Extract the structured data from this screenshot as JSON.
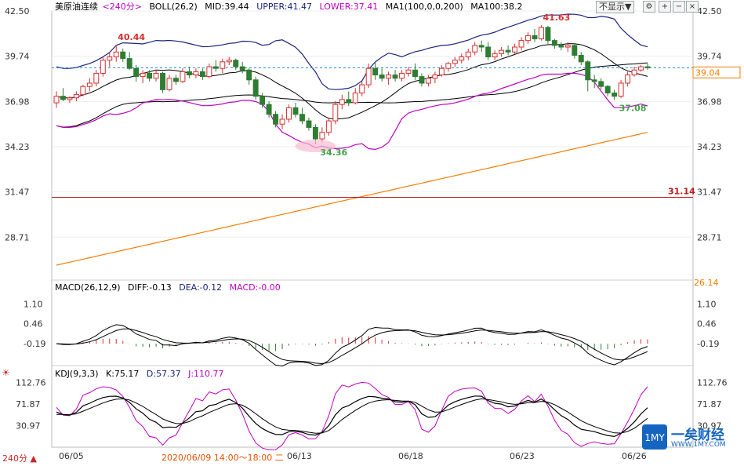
{
  "header": {
    "symbol": "美原油连续",
    "period": "<240分>",
    "boll": "BOLL(26,2)",
    "mid": "MID:39.44",
    "upper": "UPPER:41.47",
    "lower": "LOWER:37.41",
    "ma1": "MA1(100,0,0,200)",
    "ma100": "MA100:38.2",
    "hide_button": "不显示▼"
  },
  "macd_header": {
    "label": "MACD(26,12,9)",
    "diff": "DIFF:-0.13",
    "dea": "DEA:-0.12",
    "macd": "MACD:-0.00"
  },
  "kdj_header": {
    "label": "KDJ(9,3,3)",
    "k": "K:75.17",
    "d": "D:57.37",
    "j": "J:110.77"
  },
  "period_badge": "240分 ▲",
  "cursor_label": "2020/06/09 14:00～18:00 二",
  "logo_text": {
    "cn": "一矣财经",
    "url": "WWW.1MY.COM"
  },
  "chart_data": [
    {
      "type": "candlestick",
      "y_ticks": [
        "42.50",
        "39.74",
        "36.98",
        "34.23",
        "31.47",
        "28.71"
      ],
      "ylim": [
        26.14,
        42.5
      ],
      "axis_bottom_label": "26.14",
      "price_label": "39.04",
      "x_labels": [
        "06/05",
        "06/13",
        "06/18",
        "06/23",
        "06/26"
      ],
      "annotations": [
        {
          "text": "40.44",
          "kind": "high"
        },
        {
          "text": "41.63",
          "kind": "high"
        },
        {
          "text": "34.36",
          "kind": "low"
        },
        {
          "text": "37.08",
          "kind": "low"
        }
      ],
      "reference_line": {
        "value": 31.14,
        "label": "31.14",
        "color": "#b71c1c"
      },
      "colors": {
        "up": "#d32f2f",
        "down": "#2e7d32",
        "upper": "#1a237e",
        "mid": "#000000",
        "lower": "#c000c0",
        "ma100": "#f57c00"
      },
      "candles": [
        [
          36.9,
          37.6,
          36.6,
          37.3
        ],
        [
          37.3,
          37.8,
          37.0,
          37.1
        ],
        [
          37.1,
          37.3,
          36.9,
          37.2
        ],
        [
          37.2,
          37.6,
          37.0,
          37.4
        ],
        [
          37.4,
          38.0,
          37.3,
          37.9
        ],
        [
          37.9,
          38.4,
          37.6,
          38.1
        ],
        [
          38.1,
          38.9,
          37.9,
          38.7
        ],
        [
          38.7,
          39.7,
          38.5,
          39.5
        ],
        [
          39.5,
          40.0,
          39.1,
          39.7
        ],
        [
          39.7,
          40.44,
          39.4,
          40.0
        ],
        [
          40.0,
          40.2,
          39.4,
          39.6
        ],
        [
          39.6,
          40.0,
          38.9,
          39.0
        ],
        [
          39.0,
          39.2,
          38.2,
          38.5
        ],
        [
          38.5,
          38.9,
          38.1,
          38.7
        ],
        [
          38.7,
          38.9,
          38.2,
          38.4
        ],
        [
          38.4,
          38.9,
          38.2,
          38.7
        ],
        [
          38.7,
          38.8,
          37.5,
          37.7
        ],
        [
          37.7,
          38.6,
          37.6,
          38.4
        ],
        [
          38.4,
          38.6,
          38.0,
          38.2
        ],
        [
          38.2,
          39.0,
          38.1,
          38.8
        ],
        [
          38.8,
          39.1,
          38.4,
          38.6
        ],
        [
          38.6,
          39.0,
          38.4,
          38.8
        ],
        [
          38.8,
          39.0,
          38.3,
          38.5
        ],
        [
          38.5,
          39.3,
          38.4,
          39.1
        ],
        [
          39.1,
          39.5,
          38.8,
          39.0
        ],
        [
          39.0,
          39.6,
          38.7,
          39.4
        ],
        [
          39.4,
          39.7,
          39.2,
          39.5
        ],
        [
          39.5,
          39.6,
          38.9,
          39.1
        ],
        [
          39.1,
          39.4,
          38.7,
          38.9
        ],
        [
          38.9,
          39.0,
          38.0,
          38.3
        ],
        [
          38.3,
          38.5,
          37.1,
          37.3
        ],
        [
          37.3,
          37.5,
          36.6,
          36.8
        ],
        [
          36.8,
          37.0,
          36.0,
          36.2
        ],
        [
          36.2,
          36.4,
          35.4,
          35.6
        ],
        [
          35.6,
          36.2,
          35.3,
          35.9
        ],
        [
          35.9,
          36.8,
          35.7,
          36.6
        ],
        [
          36.6,
          36.9,
          36.0,
          36.2
        ],
        [
          36.2,
          36.6,
          35.6,
          35.8
        ],
        [
          35.8,
          36.0,
          35.2,
          35.4
        ],
        [
          35.4,
          35.6,
          34.36,
          34.7
        ],
        [
          34.7,
          35.4,
          34.5,
          35.1
        ],
        [
          35.1,
          36.0,
          34.9,
          35.8
        ],
        [
          35.8,
          37.0,
          35.6,
          36.8
        ],
        [
          36.8,
          37.4,
          36.5,
          37.1
        ],
        [
          37.1,
          37.6,
          36.7,
          36.9
        ],
        [
          36.9,
          37.8,
          36.8,
          37.5
        ],
        [
          37.5,
          38.2,
          37.3,
          38.0
        ],
        [
          38.0,
          39.3,
          37.8,
          39.0
        ],
        [
          39.0,
          39.4,
          38.3,
          38.6
        ],
        [
          38.6,
          39.0,
          38.2,
          38.4
        ],
        [
          38.4,
          38.8,
          38.0,
          38.6
        ],
        [
          38.6,
          38.9,
          38.2,
          38.4
        ],
        [
          38.4,
          38.9,
          38.2,
          38.7
        ],
        [
          38.7,
          39.1,
          38.5,
          38.9
        ],
        [
          38.9,
          39.3,
          38.3,
          38.5
        ],
        [
          38.5,
          38.7,
          37.9,
          38.1
        ],
        [
          38.1,
          38.6,
          37.9,
          38.4
        ],
        [
          38.4,
          38.8,
          38.1,
          38.6
        ],
        [
          38.6,
          39.2,
          38.5,
          39.0
        ],
        [
          39.0,
          39.4,
          38.8,
          39.3
        ],
        [
          39.3,
          39.7,
          39.1,
          39.5
        ],
        [
          39.5,
          39.9,
          39.3,
          39.7
        ],
        [
          39.7,
          40.2,
          39.5,
          40.0
        ],
        [
          40.0,
          40.6,
          39.8,
          40.4
        ],
        [
          40.4,
          40.7,
          40.0,
          40.3
        ],
        [
          40.3,
          40.6,
          39.5,
          39.7
        ],
        [
          39.7,
          40.1,
          39.5,
          39.9
        ],
        [
          39.9,
          40.3,
          39.7,
          40.1
        ],
        [
          40.1,
          40.4,
          39.8,
          40.0
        ],
        [
          40.0,
          40.5,
          39.9,
          40.3
        ],
        [
          40.3,
          40.9,
          40.1,
          40.7
        ],
        [
          40.7,
          41.2,
          40.5,
          41.0
        ],
        [
          41.0,
          41.4,
          40.6,
          40.8
        ],
        [
          40.8,
          41.63,
          40.7,
          41.5
        ],
        [
          41.5,
          41.6,
          40.5,
          40.7
        ],
        [
          40.7,
          40.8,
          40.2,
          40.4
        ],
        [
          40.4,
          40.6,
          40.1,
          40.3
        ],
        [
          40.3,
          40.6,
          40.0,
          40.4
        ],
        [
          40.4,
          40.5,
          39.6,
          39.8
        ],
        [
          39.8,
          40.0,
          39.2,
          39.4
        ],
        [
          39.4,
          39.5,
          37.6,
          38.3
        ],
        [
          38.3,
          38.6,
          37.8,
          38.2
        ],
        [
          38.2,
          38.4,
          37.7,
          37.9
        ],
        [
          37.9,
          38.0,
          37.3,
          37.5
        ],
        [
          37.5,
          37.7,
          37.08,
          37.3
        ],
        [
          37.3,
          38.3,
          37.2,
          38.1
        ],
        [
          38.1,
          38.8,
          37.9,
          38.6
        ],
        [
          38.6,
          39.1,
          38.5,
          38.9
        ],
        [
          38.9,
          39.2,
          38.8,
          39.1
        ],
        [
          39.1,
          39.3,
          38.9,
          39.04
        ]
      ]
    },
    {
      "type": "macd",
      "y_ticks": [
        "1.10",
        "0.46",
        "-0.19"
      ],
      "ylim": [
        -0.8,
        1.6
      ],
      "colors": {
        "diff": "#000000",
        "dea": "#000000",
        "up": "#d32f2f",
        "down": "#2e7d32"
      }
    },
    {
      "type": "kdj",
      "y_ticks": [
        "112.76",
        "71.87",
        "30.97"
      ],
      "ylim": [
        -10,
        130
      ],
      "colors": {
        "k": "#000000",
        "d": "#000000",
        "j": "#c000c0"
      }
    }
  ]
}
